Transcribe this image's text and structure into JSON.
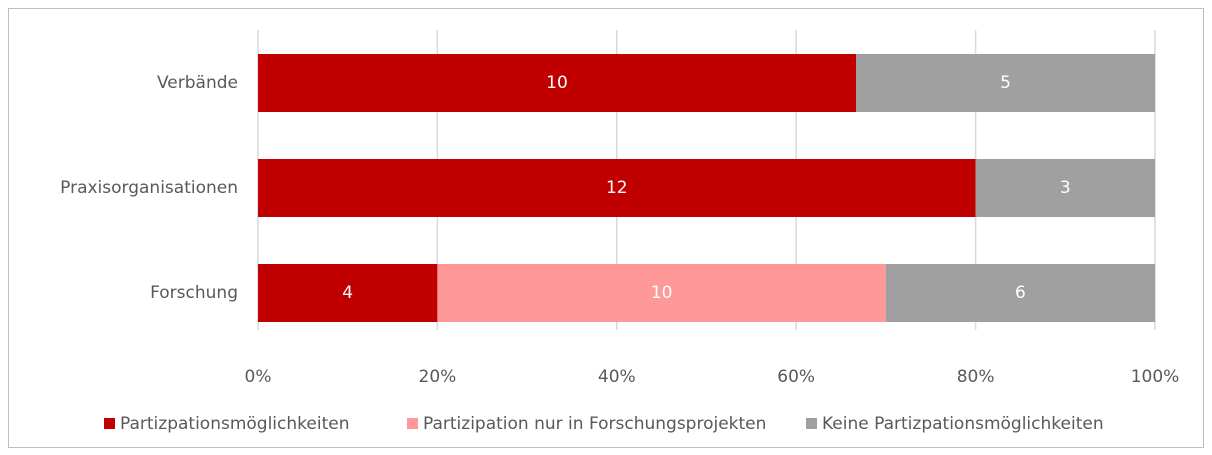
{
  "chart_data": {
    "type": "bar",
    "orientation": "horizontal",
    "stacking": "percent",
    "categories": [
      "Verbände",
      "Praxisorganisationen",
      "Forschung"
    ],
    "series": [
      {
        "name": "Partizpationsmöglichkeiten",
        "color": "#c00000",
        "values": [
          10,
          12,
          4
        ]
      },
      {
        "name": "Partizipation nur in Forschungsprojekten",
        "color": "#ff9999",
        "values": [
          null,
          null,
          10
        ]
      },
      {
        "name": "Keine Partizpationsmöglichkeiten",
        "color": "#a0a0a0",
        "values": [
          5,
          3,
          6
        ]
      }
    ],
    "xlim": [
      0,
      100
    ],
    "xticks": [
      {
        "value": 0,
        "label": "0%"
      },
      {
        "value": 20,
        "label": "20%"
      },
      {
        "value": 40,
        "label": "40%"
      },
      {
        "value": 60,
        "label": "60%"
      },
      {
        "value": 80,
        "label": "80%"
      },
      {
        "value": 100,
        "label": "100%"
      }
    ],
    "grid": true,
    "legend": "bottom"
  }
}
